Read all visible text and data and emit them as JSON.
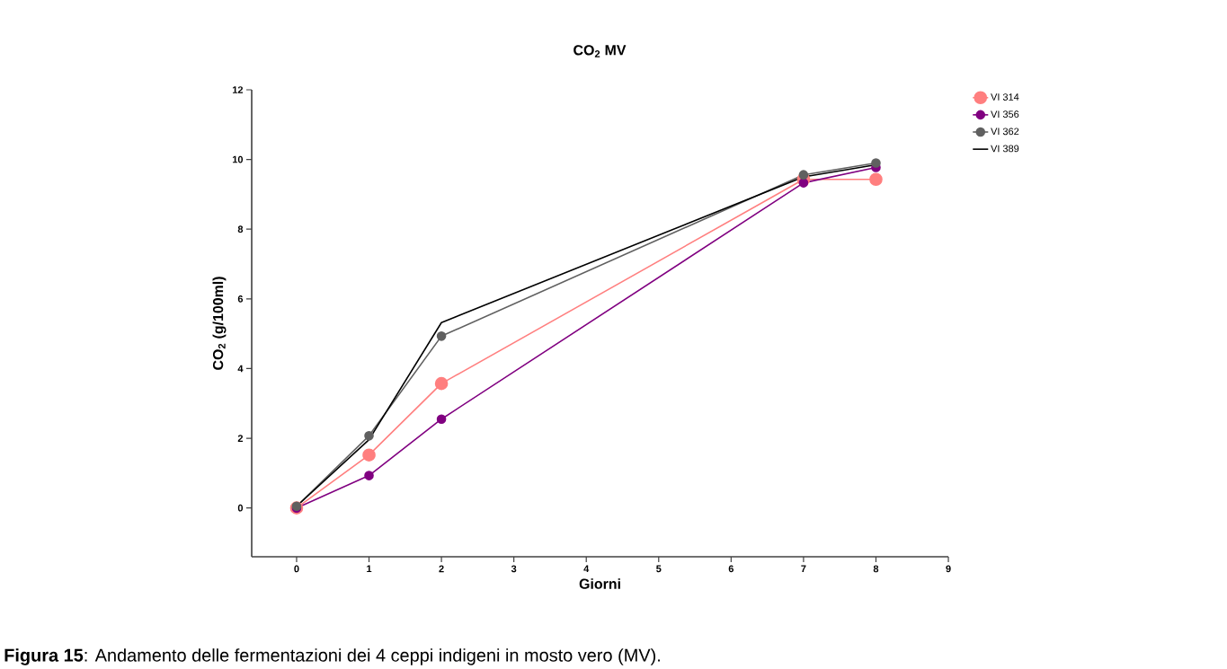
{
  "chart_data": {
    "type": "line",
    "title": "CO$_{2}$ MV",
    "xlabel": "Giorni",
    "ylabel": "CO$_{2}$ (g/100ml)",
    "x": [
      0,
      1,
      2,
      7,
      8
    ],
    "series": [
      {
        "name": "VI 314",
        "color": "#ff7f7f",
        "marker": "circle",
        "values": [
          0.0,
          1.52,
          3.57,
          9.43,
          9.43
        ]
      },
      {
        "name": "VI 356",
        "color": "#800080",
        "marker": "circle",
        "values": [
          0.0,
          0.93,
          2.55,
          9.33,
          9.77
        ]
      },
      {
        "name": "VI 362",
        "color": "#606060",
        "marker": "circle",
        "values": [
          0.05,
          2.07,
          4.93,
          9.56,
          9.9
        ]
      },
      {
        "name": "VI 389",
        "color": "#000000",
        "marker": "none",
        "values": [
          0.05,
          1.96,
          5.32,
          9.5,
          9.85
        ]
      }
    ],
    "xlim": [
      -0.62,
      9
    ],
    "ylim": [
      -1.4,
      12
    ],
    "xticks": [
      0,
      1,
      2,
      3,
      4,
      5,
      6,
      7,
      8,
      9
    ],
    "yticks": [
      0,
      2,
      4,
      6,
      8,
      10,
      12
    ],
    "legend": "top right",
    "grid": false,
    "line_style": "solid",
    "annotations": [
      "**Figura 15**: Andamento delle fermentazioni dei 4 ceppi indigeni in mosto vero (MV)."
    ]
  }
}
